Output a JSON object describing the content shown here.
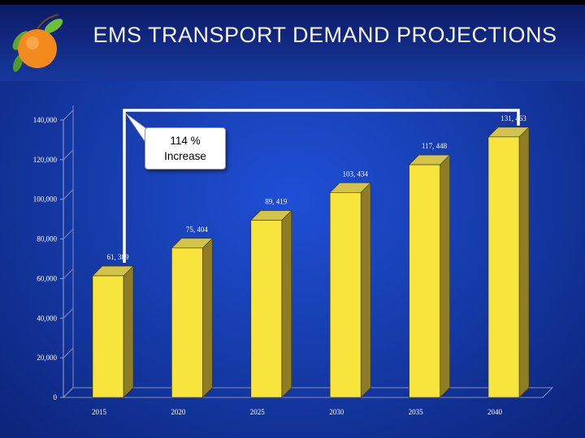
{
  "header": {
    "title": "EMS TRANSPORT DEMAND PROJECTIONS",
    "logo_icon": "orange-logo-icon"
  },
  "colors": {
    "bar_front": "#f7e53d",
    "bar_side": "#8f7d25",
    "bar_top": "#d4c34a",
    "axis_text": "#ffffff",
    "label_text": "#ffffff",
    "connector": "#ffffff"
  },
  "annotation": {
    "line1": "114 %",
    "line2": "Increase"
  },
  "chart_data": {
    "type": "bar",
    "title": "EMS TRANSPORT DEMAND PROJECTIONS",
    "xlabel": "",
    "ylabel": "",
    "categories": [
      "2015",
      "2020",
      "2025",
      "2030",
      "2035",
      "2040"
    ],
    "values": [
      61389,
      75404,
      89419,
      103434,
      117448,
      131463
    ],
    "data_labels": [
      "61, 389",
      "75, 404",
      "89, 419",
      "103, 434",
      "117, 448",
      "131, 463"
    ],
    "y_ticks": [
      0,
      20000,
      40000,
      60000,
      80000,
      100000,
      120000,
      140000
    ],
    "y_tick_labels": [
      "0",
      "20,000",
      "40,000",
      "60,000",
      "80,000",
      "100,000",
      "120,000",
      "140,000"
    ],
    "ylim": [
      0,
      140000
    ],
    "grid": false,
    "legend": "none",
    "style": "3d"
  }
}
